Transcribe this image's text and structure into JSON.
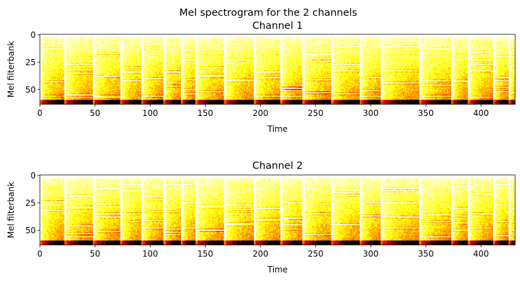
{
  "figure": {
    "suptitle": "Mel spectrogram for the 2 channels",
    "colormap": "hot",
    "background": "#ffffff"
  },
  "chart_data": [
    {
      "type": "heatmap",
      "title": "Channel 1",
      "xlabel": "Time",
      "ylabel": "Mel filterbank",
      "xlim": [
        0,
        431
      ],
      "ylim": [
        63.5,
        -0.5
      ],
      "xticks": [
        0,
        50,
        100,
        150,
        200,
        250,
        300,
        350,
        400
      ],
      "yticks": [
        0,
        25,
        50
      ],
      "n_mels": 64,
      "n_frames": 431,
      "onset_frames": [
        0,
        22,
        48,
        73,
        92,
        112,
        128,
        141,
        167,
        194,
        218,
        238,
        264,
        290,
        309,
        344,
        373,
        388,
        411,
        425
      ],
      "grid": false
    },
    {
      "type": "heatmap",
      "title": "Channel 2",
      "xlabel": "Time",
      "ylabel": "Mel filterbank",
      "xlim": [
        0,
        431
      ],
      "ylim": [
        63.5,
        -0.5
      ],
      "xticks": [
        0,
        50,
        100,
        150,
        200,
        250,
        300,
        350,
        400
      ],
      "yticks": [
        0,
        25,
        50
      ],
      "n_mels": 64,
      "n_frames": 431,
      "onset_frames": [
        0,
        22,
        48,
        73,
        92,
        112,
        128,
        141,
        167,
        194,
        218,
        238,
        264,
        290,
        309,
        344,
        373,
        388,
        411,
        425
      ],
      "grid": false
    }
  ]
}
